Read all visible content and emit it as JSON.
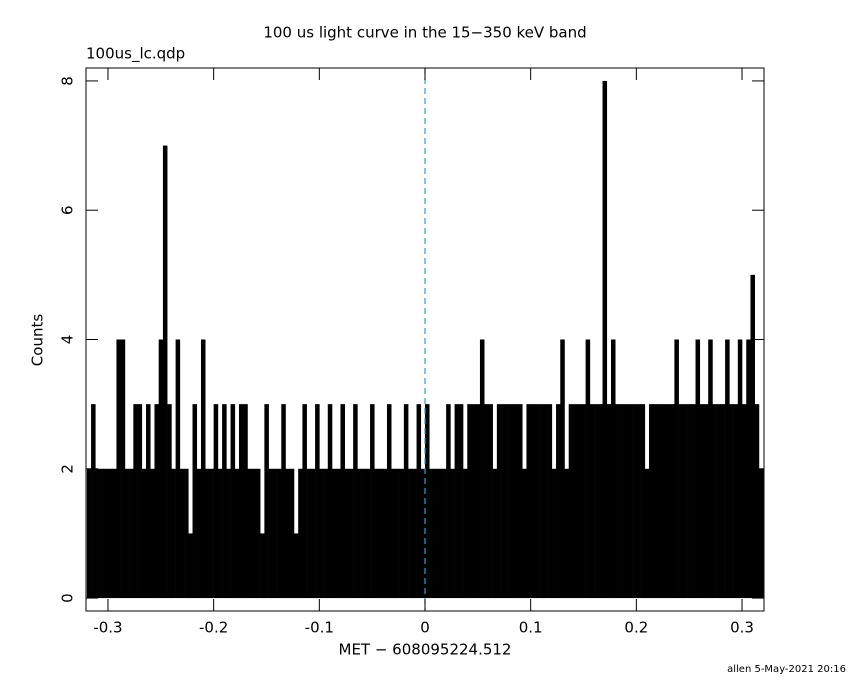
{
  "chart_data": {
    "type": "histogram-spikes",
    "title": "100 us light curve in the 15−350 keV band",
    "subtitle": "100us_lc.qdp",
    "x_label": "MET − 608095224.512",
    "y_label": "Counts",
    "footer": "allen  5-May-2021 20:16",
    "color": "#000000",
    "xlim": [
      -0.3208,
      0.3208
    ],
    "ylim": [
      -0.2,
      8.2
    ],
    "xticks": [
      -0.3,
      -0.2,
      -0.1,
      0,
      0.1,
      0.2,
      0.3
    ],
    "yticks": [
      0,
      2,
      4,
      6,
      8
    ],
    "reference_line": {
      "x": 0,
      "color": "#2a9fd6",
      "dashed": true
    },
    "x": [
      -0.318,
      -0.314,
      -0.31,
      -0.306,
      -0.302,
      -0.298,
      -0.294,
      -0.29,
      -0.286,
      -0.282,
      -0.278,
      -0.274,
      -0.27,
      -0.266,
      -0.262,
      -0.258,
      -0.254,
      -0.25,
      -0.246,
      -0.242,
      -0.238,
      -0.234,
      -0.23,
      -0.226,
      -0.222,
      -0.218,
      -0.214,
      -0.21,
      -0.206,
      -0.202,
      -0.198,
      -0.194,
      -0.19,
      -0.186,
      -0.182,
      -0.178,
      -0.174,
      -0.17,
      -0.166,
      -0.162,
      -0.158,
      -0.154,
      -0.15,
      -0.146,
      -0.142,
      -0.138,
      -0.134,
      -0.13,
      -0.126,
      -0.122,
      -0.118,
      -0.114,
      -0.11,
      -0.106,
      -0.102,
      -0.098,
      -0.094,
      -0.09,
      -0.086,
      -0.082,
      -0.078,
      -0.074,
      -0.07,
      -0.066,
      -0.062,
      -0.058,
      -0.054,
      -0.05,
      -0.046,
      -0.042,
      -0.038,
      -0.034,
      -0.03,
      -0.026,
      -0.022,
      -0.018,
      -0.014,
      -0.01,
      -0.006,
      -0.002,
      0.002,
      0.006,
      0.01,
      0.014,
      0.018,
      0.022,
      0.026,
      0.03,
      0.034,
      0.038,
      0.042,
      0.046,
      0.05,
      0.054,
      0.058,
      0.062,
      0.066,
      0.07,
      0.074,
      0.078,
      0.082,
      0.086,
      0.09,
      0.094,
      0.098,
      0.102,
      0.106,
      0.11,
      0.114,
      0.118,
      0.122,
      0.126,
      0.13,
      0.134,
      0.138,
      0.142,
      0.146,
      0.15,
      0.154,
      0.158,
      0.162,
      0.166,
      0.17,
      0.174,
      0.178,
      0.182,
      0.186,
      0.19,
      0.194,
      0.198,
      0.202,
      0.206,
      0.21,
      0.214,
      0.218,
      0.222,
      0.226,
      0.23,
      0.234,
      0.238,
      0.242,
      0.246,
      0.25,
      0.254,
      0.258,
      0.262,
      0.266,
      0.27,
      0.274,
      0.278,
      0.282,
      0.286,
      0.29,
      0.294,
      0.298,
      0.302,
      0.306,
      0.31,
      0.314,
      0.318
    ],
    "values": [
      2,
      3,
      2,
      2,
      2,
      2,
      2,
      4,
      4,
      2,
      2,
      3,
      3,
      2,
      3,
      2,
      3,
      4,
      7,
      3,
      2,
      4,
      2,
      2,
      1,
      3,
      2,
      4,
      2,
      2,
      3,
      2,
      3,
      2,
      3,
      2,
      3,
      3,
      2,
      2,
      2,
      1,
      3,
      2,
      2,
      2,
      3,
      2,
      2,
      1,
      2,
      3,
      2,
      2,
      3,
      2,
      2,
      3,
      2,
      2,
      3,
      2,
      2,
      3,
      2,
      2,
      2,
      3,
      2,
      2,
      2,
      3,
      2,
      2,
      2,
      3,
      2,
      2,
      3,
      2,
      3,
      2,
      2,
      2,
      2,
      3,
      2,
      3,
      3,
      2,
      3,
      3,
      3,
      4,
      3,
      3,
      2,
      3,
      3,
      3,
      3,
      3,
      3,
      2,
      3,
      3,
      3,
      3,
      3,
      3,
      2,
      3,
      4,
      2,
      3,
      3,
      3,
      3,
      4,
      3,
      3,
      3,
      8,
      3,
      4,
      3,
      3,
      3,
      3,
      3,
      3,
      3,
      2,
      3,
      3,
      3,
      3,
      3,
      3,
      4,
      3,
      3,
      3,
      3,
      4,
      3,
      3,
      4,
      3,
      3,
      3,
      4,
      3,
      3,
      4,
      3,
      4,
      5,
      3,
      2
    ]
  }
}
